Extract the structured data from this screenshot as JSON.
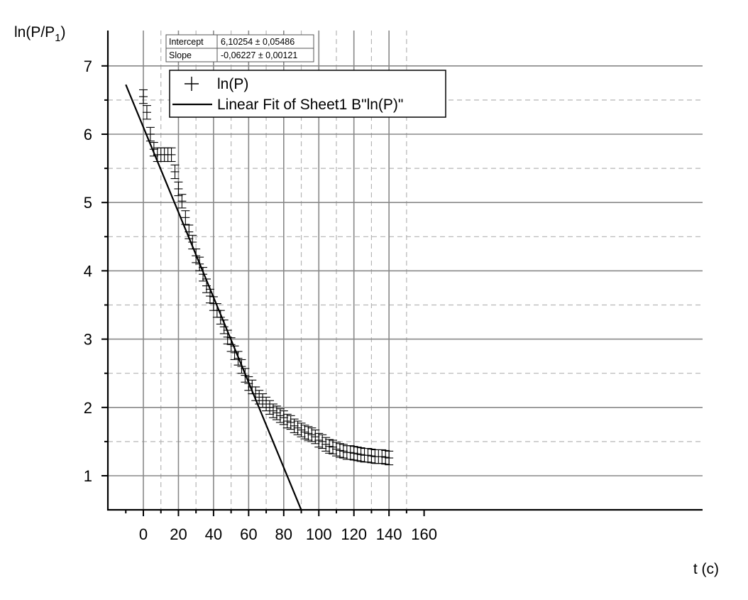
{
  "chart_data": {
    "type": "scatter",
    "xlabel": "t (c)",
    "ylabel": {
      "main": "ln(P/P",
      "sub": "1",
      "close": ")"
    },
    "xlim": [
      -10,
      160
    ],
    "ylim": [
      0.5,
      7.5
    ],
    "x_ticks": [
      0,
      20,
      40,
      60,
      80,
      100,
      120,
      140,
      160
    ],
    "y_ticks": [
      1,
      2,
      3,
      4,
      5,
      6,
      7
    ],
    "grid": {
      "major": "solid",
      "minor": "dashed"
    },
    "legend_position": "top-left",
    "stats_table": {
      "rows": [
        {
          "label": "Intercept",
          "value": "6,10254 ± 0,05486"
        },
        {
          "label": "Slope",
          "value": "-0,06227 ± 0,00121"
        }
      ]
    },
    "legend": [
      {
        "symbol": "+",
        "label": "ln(P)"
      },
      {
        "symbol": "line",
        "label": "Linear Fit of Sheet1 B\"ln(P)\""
      }
    ],
    "series": [
      {
        "name": "ln(P)",
        "marker": "plus",
        "error_bar": 0.1,
        "x": [
          0,
          2,
          4,
          6,
          8,
          10,
          12,
          14,
          16,
          18,
          20,
          22,
          24,
          26,
          28,
          30,
          32,
          34,
          36,
          38,
          40,
          42,
          44,
          46,
          48,
          50,
          52,
          54,
          56,
          58,
          60,
          62,
          64,
          66,
          68,
          70,
          72,
          74,
          76,
          78,
          80,
          82,
          84,
          86,
          88,
          90,
          92,
          94,
          96,
          98,
          100,
          102,
          104,
          106,
          108,
          110,
          112,
          114,
          116,
          118,
          120,
          122,
          124,
          126,
          128,
          130,
          132,
          134,
          136,
          138,
          140
        ],
        "y": [
          6.55,
          6.32,
          6.0,
          5.78,
          5.7,
          5.7,
          5.7,
          5.7,
          5.7,
          5.45,
          5.2,
          5.02,
          4.78,
          4.57,
          4.42,
          4.22,
          4.1,
          3.95,
          3.78,
          3.63,
          3.52,
          3.42,
          3.32,
          3.18,
          3.03,
          2.92,
          2.8,
          2.72,
          2.6,
          2.47,
          2.35,
          2.3,
          2.2,
          2.15,
          2.1,
          2.05,
          2.0,
          1.95,
          1.92,
          1.88,
          1.85,
          1.8,
          1.78,
          1.73,
          1.7,
          1.67,
          1.64,
          1.62,
          1.6,
          1.57,
          1.52,
          1.5,
          1.46,
          1.43,
          1.42,
          1.39,
          1.37,
          1.36,
          1.34,
          1.34,
          1.33,
          1.32,
          1.31,
          1.3,
          1.3,
          1.29,
          1.28,
          1.28,
          1.28,
          1.27,
          1.26
        ]
      },
      {
        "name": "Linear Fit of Sheet1 B\"ln(P)\"",
        "type": "line",
        "intercept": 6.10254,
        "slope": -0.06227,
        "x_range": [
          -10,
          90
        ]
      }
    ]
  }
}
